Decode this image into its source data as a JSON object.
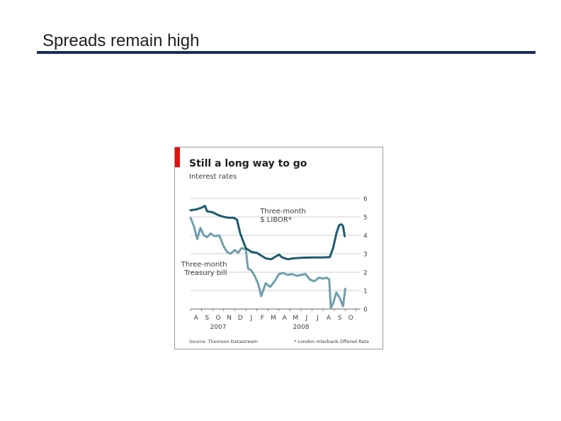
{
  "slide": {
    "title": "Spreads remain high"
  },
  "chart_data": {
    "type": "line",
    "title": "Still a long way to go",
    "subtitle": "Interest rates",
    "x_ticks": [
      "A",
      "S",
      "O",
      "N",
      "D",
      "J",
      "F",
      "M",
      "A",
      "M",
      "J",
      "J",
      "A",
      "S",
      "O"
    ],
    "year_labels": [
      "2007",
      "2008"
    ],
    "y_ticks": [
      "0",
      "1",
      "2",
      "3",
      "4",
      "5",
      "6"
    ],
    "ylim": [
      0,
      6
    ],
    "xlim": [
      0,
      15
    ],
    "y_axis_side": "right",
    "grid": true,
    "series": [
      {
        "name": "Three-month $ LIBOR*",
        "label_lines": [
          "Three-month",
          "$ LIBOR*"
        ],
        "color": "#1d5a6e",
        "points": [
          [
            0,
            5.36
          ],
          [
            0.5,
            5.4
          ],
          [
            1,
            5.5
          ],
          [
            1.3,
            5.6
          ],
          [
            1.5,
            5.3
          ],
          [
            2,
            5.25
          ],
          [
            2.5,
            5.1
          ],
          [
            3,
            5.0
          ],
          [
            3.5,
            4.95
          ],
          [
            3.9,
            4.95
          ],
          [
            4.2,
            4.85
          ],
          [
            4.5,
            4.1
          ],
          [
            5,
            3.3
          ],
          [
            5.5,
            3.1
          ],
          [
            6,
            3.05
          ],
          [
            6.4,
            2.9
          ],
          [
            6.8,
            2.75
          ],
          [
            7.3,
            2.7
          ],
          [
            7.7,
            2.85
          ],
          [
            8,
            2.95
          ],
          [
            8.3,
            2.8
          ],
          [
            8.8,
            2.7
          ],
          [
            9.3,
            2.75
          ],
          [
            10,
            2.78
          ],
          [
            11,
            2.8
          ],
          [
            12,
            2.8
          ],
          [
            12.6,
            2.82
          ],
          [
            12.9,
            3.3
          ],
          [
            13.2,
            4.1
          ],
          [
            13.45,
            4.55
          ],
          [
            13.65,
            4.6
          ],
          [
            13.8,
            4.5
          ],
          [
            13.95,
            3.95
          ]
        ]
      },
      {
        "name": "Three-month Treasury bill",
        "label_lines": [
          "Three-month",
          "Treasury bill"
        ],
        "color": "#6f9fae",
        "points": [
          [
            0,
            4.95
          ],
          [
            0.3,
            4.5
          ],
          [
            0.6,
            3.8
          ],
          [
            0.9,
            4.4
          ],
          [
            1.2,
            4.0
          ],
          [
            1.5,
            3.9
          ],
          [
            1.8,
            4.1
          ],
          [
            2.2,
            3.95
          ],
          [
            2.6,
            4.0
          ],
          [
            3.0,
            3.4
          ],
          [
            3.3,
            3.1
          ],
          [
            3.6,
            3.0
          ],
          [
            4.0,
            3.2
          ],
          [
            4.3,
            3.05
          ],
          [
            4.6,
            3.3
          ],
          [
            5,
            3.25
          ],
          [
            5.2,
            2.2
          ],
          [
            5.5,
            2.1
          ],
          [
            5.8,
            1.8
          ],
          [
            6.1,
            1.4
          ],
          [
            6.4,
            0.7
          ],
          [
            6.8,
            1.4
          ],
          [
            7.2,
            1.2
          ],
          [
            7.6,
            1.5
          ],
          [
            8,
            1.9
          ],
          [
            8.4,
            1.95
          ],
          [
            8.8,
            1.85
          ],
          [
            9.2,
            1.9
          ],
          [
            9.6,
            1.8
          ],
          [
            10,
            1.85
          ],
          [
            10.4,
            1.9
          ],
          [
            10.8,
            1.6
          ],
          [
            11.2,
            1.5
          ],
          [
            11.6,
            1.7
          ],
          [
            12.0,
            1.65
          ],
          [
            12.3,
            1.7
          ],
          [
            12.55,
            1.6
          ],
          [
            12.7,
            0.05
          ],
          [
            12.9,
            0.3
          ],
          [
            13.2,
            0.9
          ],
          [
            13.5,
            0.6
          ],
          [
            13.8,
            0.15
          ],
          [
            14.0,
            1.1
          ]
        ]
      }
    ],
    "source": "Source: Thomson Datastream",
    "footnote": "* London Interbank Offered Rate"
  }
}
